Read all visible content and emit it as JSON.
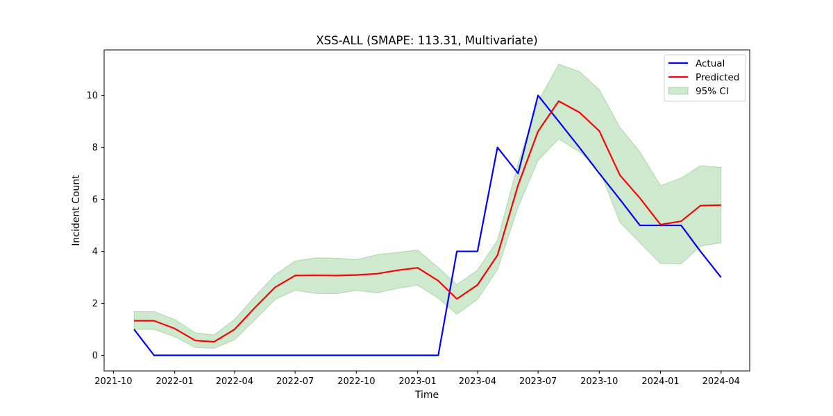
{
  "chart_data": {
    "type": "line",
    "title": "XSS-ALL (SMAPE: 113.31, Multivariate)",
    "xlabel": "Time",
    "ylabel": "Incident Count",
    "x": [
      "2021-11",
      "2021-12",
      "2022-01",
      "2022-02",
      "2022-03",
      "2022-04",
      "2022-05",
      "2022-06",
      "2022-07",
      "2022-08",
      "2022-09",
      "2022-10",
      "2022-11",
      "2022-12",
      "2023-01",
      "2023-02",
      "2023-03",
      "2023-04",
      "2023-05",
      "2023-06",
      "2023-07",
      "2023-08",
      "2023-09",
      "2023-10",
      "2023-11",
      "2023-12",
      "2024-01",
      "2024-02",
      "2024-03",
      "2024-04"
    ],
    "x_ticks": [
      "2021-10",
      "2022-01",
      "2022-04",
      "2022-07",
      "2022-10",
      "2023-01",
      "2023-04",
      "2023-07",
      "2023-10",
      "2024-01",
      "2024-04"
    ],
    "y_ticks": [
      0,
      2,
      4,
      6,
      8,
      10
    ],
    "xlim": [
      "2021-09-17",
      "2024-05-14"
    ],
    "ylim": [
      -0.6,
      11.75
    ],
    "grid": false,
    "legend": "top-right",
    "series": [
      {
        "name": "Actual",
        "color": "#0000ff",
        "values": [
          1,
          0,
          0,
          0,
          0,
          0,
          0,
          0,
          0,
          0,
          0,
          0,
          0,
          0,
          0,
          0,
          4,
          4,
          8,
          7,
          10,
          9,
          8,
          7,
          6,
          5,
          5,
          5,
          4,
          3
        ]
      },
      {
        "name": "Predicted",
        "color": "#ff0000",
        "values": [
          1.33,
          1.33,
          1.03,
          0.57,
          0.52,
          1.0,
          1.82,
          2.62,
          3.07,
          3.08,
          3.07,
          3.09,
          3.14,
          3.27,
          3.37,
          2.87,
          2.17,
          2.71,
          3.85,
          6.55,
          8.62,
          9.78,
          9.35,
          8.63,
          6.93,
          6.05,
          5.03,
          5.16,
          5.76,
          5.78
        ]
      }
    ],
    "confidence_band": {
      "name": "95% CI",
      "color": "#2ca02c",
      "lower": [
        1.0,
        1.0,
        0.72,
        0.3,
        0.27,
        0.6,
        1.35,
        2.15,
        2.5,
        2.38,
        2.37,
        2.5,
        2.4,
        2.57,
        2.7,
        2.2,
        1.58,
        2.15,
        3.3,
        5.7,
        7.5,
        8.33,
        7.83,
        7.15,
        5.12,
        4.33,
        3.53,
        3.52,
        4.2,
        4.33
      ],
      "upper": [
        1.68,
        1.68,
        1.38,
        0.87,
        0.78,
        1.38,
        2.25,
        3.1,
        3.63,
        3.75,
        3.74,
        3.68,
        3.87,
        3.96,
        4.05,
        3.38,
        2.72,
        3.28,
        4.42,
        7.38,
        9.76,
        11.2,
        10.92,
        10.22,
        8.77,
        7.83,
        6.53,
        6.82,
        7.3,
        7.23
      ]
    }
  }
}
